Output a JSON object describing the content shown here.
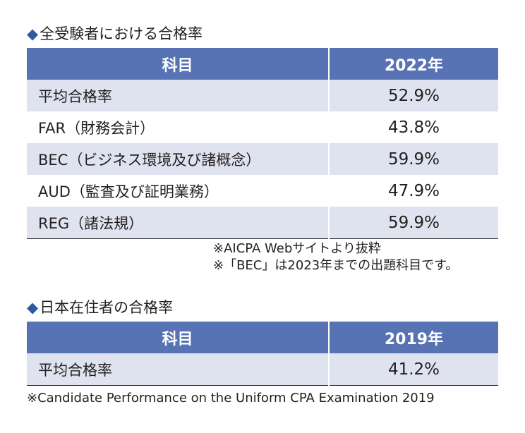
{
  "section1": {
    "marker": "◆",
    "title": "全受験者における合格率",
    "header": {
      "subject": "科目",
      "year": "2022年"
    },
    "rows": [
      {
        "subject": "平均合格率",
        "rate": "52.9%"
      },
      {
        "subject": "FAR（財務会計）",
        "rate": "43.8%"
      },
      {
        "subject": "BEC（ビジネス環境及び諸概念）",
        "rate": "59.9%"
      },
      {
        "subject": "AUD（監査及び証明業務）",
        "rate": "47.9%"
      },
      {
        "subject": "REG（諸法規）",
        "rate": "59.9%"
      }
    ],
    "notes": [
      "※AICPA Webサイトより抜粋",
      "※「BEC」は2023年までの出題科目です。"
    ]
  },
  "section2": {
    "marker": "◆",
    "title": "日本在住者の合格率",
    "header": {
      "subject": "科目",
      "year": "2019年"
    },
    "rows": [
      {
        "subject": "平均合格率",
        "rate": "41.2%"
      }
    ],
    "notes": [
      "※Candidate Performance on the Uniform CPA Examination 2019"
    ]
  },
  "colors": {
    "header_bg": "#5773b4",
    "alt_row_bg": "#dfe3f0",
    "marker": "#2c5aa0"
  }
}
